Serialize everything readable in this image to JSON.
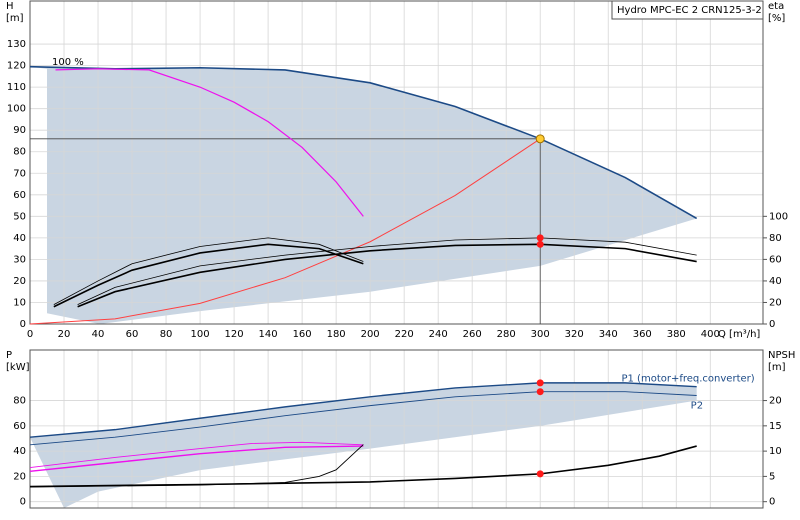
{
  "chart_data": [
    {
      "type": "line",
      "title": "Hydro MPC-EC 2 CRN125-3-2",
      "y_label": [
        "H",
        "[m]"
      ],
      "y2_label": [
        "eta",
        "[%]"
      ],
      "x_label": "Q [m³/h]",
      "annotations": [
        "100 %"
      ],
      "xlim": [
        0,
        431
      ],
      "xticks": [
        0,
        20,
        40,
        60,
        80,
        100,
        120,
        140,
        160,
        180,
        200,
        220,
        240,
        260,
        280,
        300,
        320,
        340,
        360,
        380,
        400
      ],
      "ylim": [
        0,
        150
      ],
      "yticks": [
        0,
        10,
        20,
        30,
        40,
        50,
        60,
        70,
        80,
        90,
        100,
        110,
        120,
        130
      ],
      "y2lim": [
        0,
        300
      ],
      "y2ticks": [
        0,
        20,
        40,
        60,
        80,
        100
      ],
      "grid": true,
      "show_xtick_labels": true,
      "operating_range": {
        "color": "#c9d5e2",
        "x": [
          392,
          300,
          200,
          100,
          41,
          10,
          10
        ],
        "values": [
          49,
          27,
          15,
          6,
          0,
          5,
          118.5
        ]
      },
      "series": [
        {
          "color": "#1c4a86",
          "width": 1.6,
          "x": [
            0,
            50,
            100,
            150,
            200,
            250,
            300,
            350,
            392
          ],
          "values": [
            119.5,
            118.5,
            119,
            118,
            112,
            101,
            86,
            68,
            49
          ]
        },
        {
          "color": "#ee10ee",
          "width": 1.2,
          "x": [
            15,
            40,
            70,
            100,
            120,
            140,
            160,
            180,
            196
          ],
          "values": [
            118,
            118.5,
            118,
            110,
            103,
            94,
            82,
            66,
            50
          ]
        },
        {
          "color": "#ff4040",
          "width": 1,
          "x": [
            0,
            50,
            100,
            150,
            200,
            250,
            300
          ],
          "values": [
            0,
            2.4,
            9.6,
            21.5,
            38.2,
            59.7,
            86
          ]
        },
        {
          "color": "#000000",
          "width": 0.8,
          "axis": "y2",
          "x": [
            14,
            40,
            60,
            100,
            140,
            170,
            196
          ],
          "values": [
            18,
            40,
            56,
            72,
            80,
            74,
            58
          ]
        },
        {
          "color": "#000000",
          "width": 1.6,
          "axis": "y2",
          "x": [
            14,
            40,
            60,
            100,
            140,
            170,
            196
          ],
          "values": [
            16,
            36,
            50,
            66,
            74,
            70,
            56
          ]
        },
        {
          "color": "#000000",
          "width": 0.8,
          "axis": "y2",
          "x": [
            28,
            50,
            100,
            150,
            200,
            250,
            300,
            350,
            392
          ],
          "values": [
            18,
            34,
            54,
            64,
            72,
            78,
            80,
            76,
            64
          ]
        },
        {
          "color": "#000000",
          "width": 1.6,
          "axis": "y2",
          "x": [
            28,
            50,
            100,
            150,
            200,
            250,
            300,
            350,
            392
          ],
          "values": [
            16,
            30,
            48,
            60,
            68,
            73,
            74,
            70,
            58
          ]
        }
      ],
      "duty_point": {
        "x": 300,
        "y": 86,
        "color": "#ffcc33"
      },
      "points": [
        {
          "x": 300,
          "y": 80,
          "axis": "y2"
        },
        {
          "x": 300,
          "y": 74,
          "axis": "y2"
        }
      ]
    },
    {
      "type": "line",
      "y_label": [
        "P",
        "[kW]"
      ],
      "y2_label": [
        "NPSH",
        "[m]"
      ],
      "xlim": [
        0,
        431
      ],
      "xticks": [
        0,
        20,
        40,
        60,
        80,
        100,
        120,
        140,
        160,
        180,
        200,
        220,
        240,
        260,
        280,
        300,
        320,
        340,
        360,
        380,
        400
      ],
      "ylim": [
        -5,
        120
      ],
      "yticks": [
        0,
        20,
        40,
        60,
        80
      ],
      "y2lim": [
        -1.25,
        30
      ],
      "y2ticks": [
        0,
        5,
        10,
        15,
        20
      ],
      "grid": true,
      "show_xtick_labels": false,
      "operating_range": {
        "color": "#c9d5e2",
        "x": [
          392,
          300,
          200,
          100,
          40,
          20
        ],
        "values": [
          80,
          60,
          42,
          25,
          8,
          -5
        ]
      },
      "series": [
        {
          "name": "P1 (motor+freq.converter)",
          "color": "#1c4a86",
          "width": 1.4,
          "x": [
            0,
            50,
            100,
            150,
            200,
            250,
            300,
            350,
            392
          ],
          "values": [
            51,
            57,
            66,
            75,
            83,
            90,
            94,
            94,
            91
          ]
        },
        {
          "name": "P2",
          "color": "#1c4a86",
          "width": 0.9,
          "x": [
            0,
            50,
            100,
            150,
            200,
            250,
            300,
            350,
            392
          ],
          "values": [
            45,
            51,
            59,
            68,
            76,
            83,
            87,
            87,
            84
          ]
        },
        {
          "color": "#ee10ee",
          "width": 0.9,
          "x": [
            0,
            50,
            100,
            130,
            160,
            196
          ],
          "values": [
            27,
            35,
            42,
            46,
            47,
            45
          ]
        },
        {
          "color": "#ee10ee",
          "width": 1.4,
          "x": [
            0,
            50,
            100,
            150,
            196
          ],
          "values": [
            24,
            31,
            38,
            43,
            44
          ]
        },
        {
          "color": "#000000",
          "width": 1.6,
          "axis": "y2",
          "x": [
            0,
            100,
            200,
            250,
            300,
            340,
            370,
            392
          ],
          "values": [
            3,
            3.4,
            3.9,
            4.6,
            5.5,
            7.2,
            9,
            11
          ]
        },
        {
          "color": "#000000",
          "width": 0.9,
          "axis": "y2",
          "x": [
            0,
            100,
            150,
            170,
            180,
            196
          ],
          "values": [
            2.9,
            3.3,
            3.8,
            5,
            6.3,
            11.3
          ]
        }
      ],
      "points": [
        {
          "x": 300,
          "y": 94
        },
        {
          "x": 300,
          "y": 87
        },
        {
          "x": 300,
          "y": 5.5,
          "axis": "y2"
        }
      ]
    }
  ]
}
